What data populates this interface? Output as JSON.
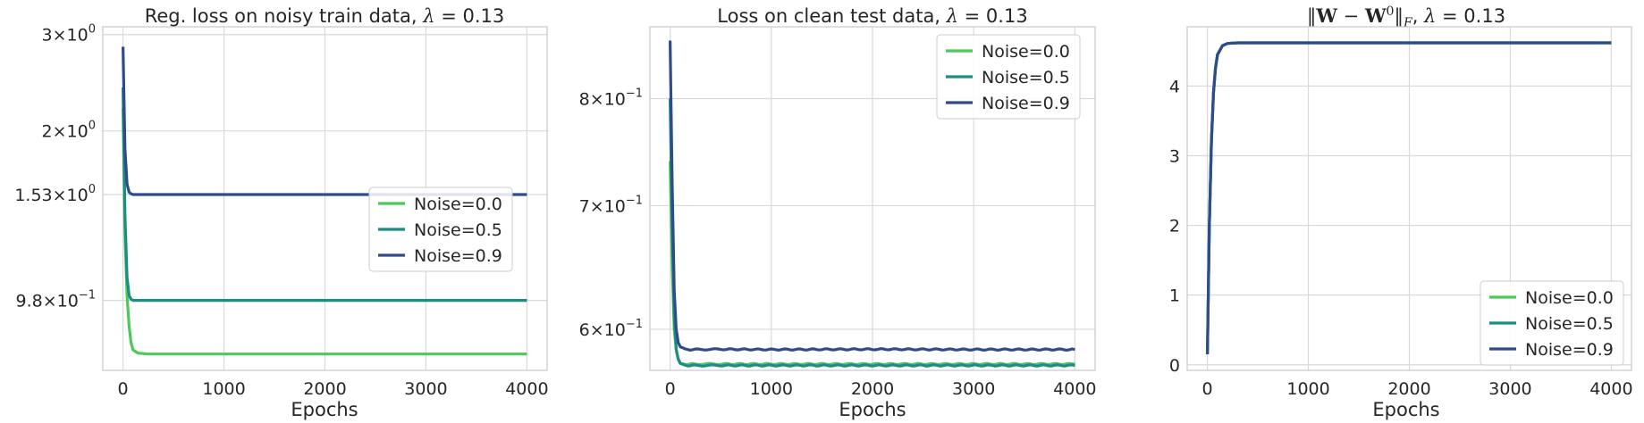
{
  "colors": {
    "Noise=0.0": "#4fc85b",
    "Noise=0.5": "#1b8e7f",
    "Noise=0.9": "#2f4b8a"
  },
  "chart_data": [
    {
      "type": "line",
      "title": "Reg. loss on noisy train data, λ = 0.13",
      "xlabel": "Epochs",
      "ylabel": "",
      "yscale": "log",
      "xlim": [
        -200,
        4200
      ],
      "ylim": [
        0.73,
        3.1
      ],
      "xticks": [
        0,
        1000,
        2000,
        3000,
        4000
      ],
      "yticks": [
        {
          "value": 3.0,
          "base": "3",
          "exp": "0"
        },
        {
          "value": 2.0,
          "base": "2",
          "exp": "0"
        },
        {
          "value": 1.53,
          "base": "1.53",
          "exp": "0"
        },
        {
          "value": 0.98,
          "base": "9.8",
          "exp": "−1"
        }
      ],
      "grid": true,
      "legend": "center-right",
      "series": [
        {
          "name": "Noise=0.0",
          "x": [
            0,
            20,
            40,
            60,
            80,
            100,
            150,
            250,
            500,
            1000,
            2000,
            3000,
            4000
          ],
          "y": [
            2.2,
            1.3,
            1.0,
            0.88,
            0.82,
            0.795,
            0.785,
            0.782,
            0.782,
            0.782,
            0.782,
            0.782,
            0.782
          ]
        },
        {
          "name": "Noise=0.5",
          "x": [
            0,
            20,
            40,
            60,
            80,
            100,
            150,
            250,
            500,
            1000,
            2000,
            3000,
            4000
          ],
          "y": [
            2.4,
            1.4,
            1.08,
            1.0,
            0.985,
            0.98,
            0.98,
            0.98,
            0.98,
            0.98,
            0.98,
            0.98,
            0.98
          ]
        },
        {
          "name": "Noise=0.9",
          "x": [
            0,
            20,
            40,
            60,
            80,
            100,
            150,
            250,
            500,
            1000,
            2000,
            3000,
            4000
          ],
          "y": [
            2.85,
            1.85,
            1.6,
            1.545,
            1.535,
            1.53,
            1.53,
            1.53,
            1.53,
            1.53,
            1.53,
            1.53,
            1.53
          ]
        }
      ]
    },
    {
      "type": "line",
      "title": "Loss on clean test data, λ = 0.13",
      "xlabel": "Epochs",
      "ylabel": "",
      "yscale": "log",
      "xlim": [
        -200,
        4200
      ],
      "ylim": [
        0.57,
        0.875
      ],
      "xticks": [
        0,
        1000,
        2000,
        3000,
        4000
      ],
      "yticks": [
        {
          "value": 0.8,
          "base": "8",
          "exp": "−1"
        },
        {
          "value": 0.7,
          "base": "7",
          "exp": "−1"
        },
        {
          "value": 0.6,
          "base": "6",
          "exp": "−1"
        }
      ],
      "grid": true,
      "legend": "top-right",
      "series": [
        {
          "name": "Noise=0.0",
          "x": [
            0,
            20,
            40,
            60,
            80,
            100,
            150,
            250,
            500,
            1000,
            2000,
            3000,
            4000
          ],
          "y": [
            0.74,
            0.65,
            0.6,
            0.585,
            0.578,
            0.575,
            0.5745,
            0.5745,
            0.5745,
            0.5745,
            0.5745,
            0.5745,
            0.5745
          ]
        },
        {
          "name": "Noise=0.5",
          "x": [
            0,
            20,
            40,
            60,
            80,
            100,
            150,
            250,
            500,
            1000,
            2000,
            3000,
            4000
          ],
          "y": [
            0.8,
            0.68,
            0.61,
            0.585,
            0.578,
            0.575,
            0.5735,
            0.5735,
            0.5735,
            0.5735,
            0.5735,
            0.5735,
            0.5735
          ]
        },
        {
          "name": "Noise=0.9",
          "x": [
            0,
            20,
            40,
            60,
            80,
            100,
            150,
            250,
            500,
            1000,
            2000,
            3000,
            4000
          ],
          "y": [
            0.86,
            0.72,
            0.63,
            0.6,
            0.59,
            0.587,
            0.585,
            0.585,
            0.5852,
            0.585,
            0.5852,
            0.585,
            0.585
          ]
        }
      ]
    },
    {
      "type": "line",
      "title": "‖W − W⁰‖F , λ = 0.13",
      "xlabel": "Epochs",
      "ylabel": "",
      "yscale": "linear",
      "xlim": [
        -200,
        4200
      ],
      "ylim": [
        -0.08,
        4.85
      ],
      "xticks": [
        0,
        1000,
        2000,
        3000,
        4000
      ],
      "yticks": [
        0,
        1,
        2,
        3,
        4
      ],
      "grid": true,
      "legend": "bottom-right",
      "series": [
        {
          "name": "Noise=0.0",
          "x": [
            0,
            20,
            40,
            60,
            80,
            100,
            150,
            200,
            300,
            500,
            1000,
            2000,
            3000,
            4000
          ],
          "y": [
            0.15,
            2.0,
            3.2,
            3.9,
            4.25,
            4.45,
            4.58,
            4.61,
            4.62,
            4.62,
            4.62,
            4.62,
            4.62,
            4.62
          ]
        },
        {
          "name": "Noise=0.5",
          "x": [
            0,
            20,
            40,
            60,
            80,
            100,
            150,
            200,
            300,
            500,
            1000,
            2000,
            3000,
            4000
          ],
          "y": [
            0.15,
            2.0,
            3.2,
            3.9,
            4.25,
            4.45,
            4.58,
            4.61,
            4.62,
            4.62,
            4.62,
            4.62,
            4.62,
            4.62
          ]
        },
        {
          "name": "Noise=0.9",
          "x": [
            0,
            20,
            40,
            60,
            80,
            100,
            150,
            200,
            300,
            500,
            1000,
            2000,
            3000,
            4000
          ],
          "y": [
            0.15,
            2.0,
            3.2,
            3.9,
            4.25,
            4.45,
            4.58,
            4.61,
            4.62,
            4.62,
            4.62,
            4.62,
            4.62,
            4.62
          ]
        }
      ]
    }
  ]
}
